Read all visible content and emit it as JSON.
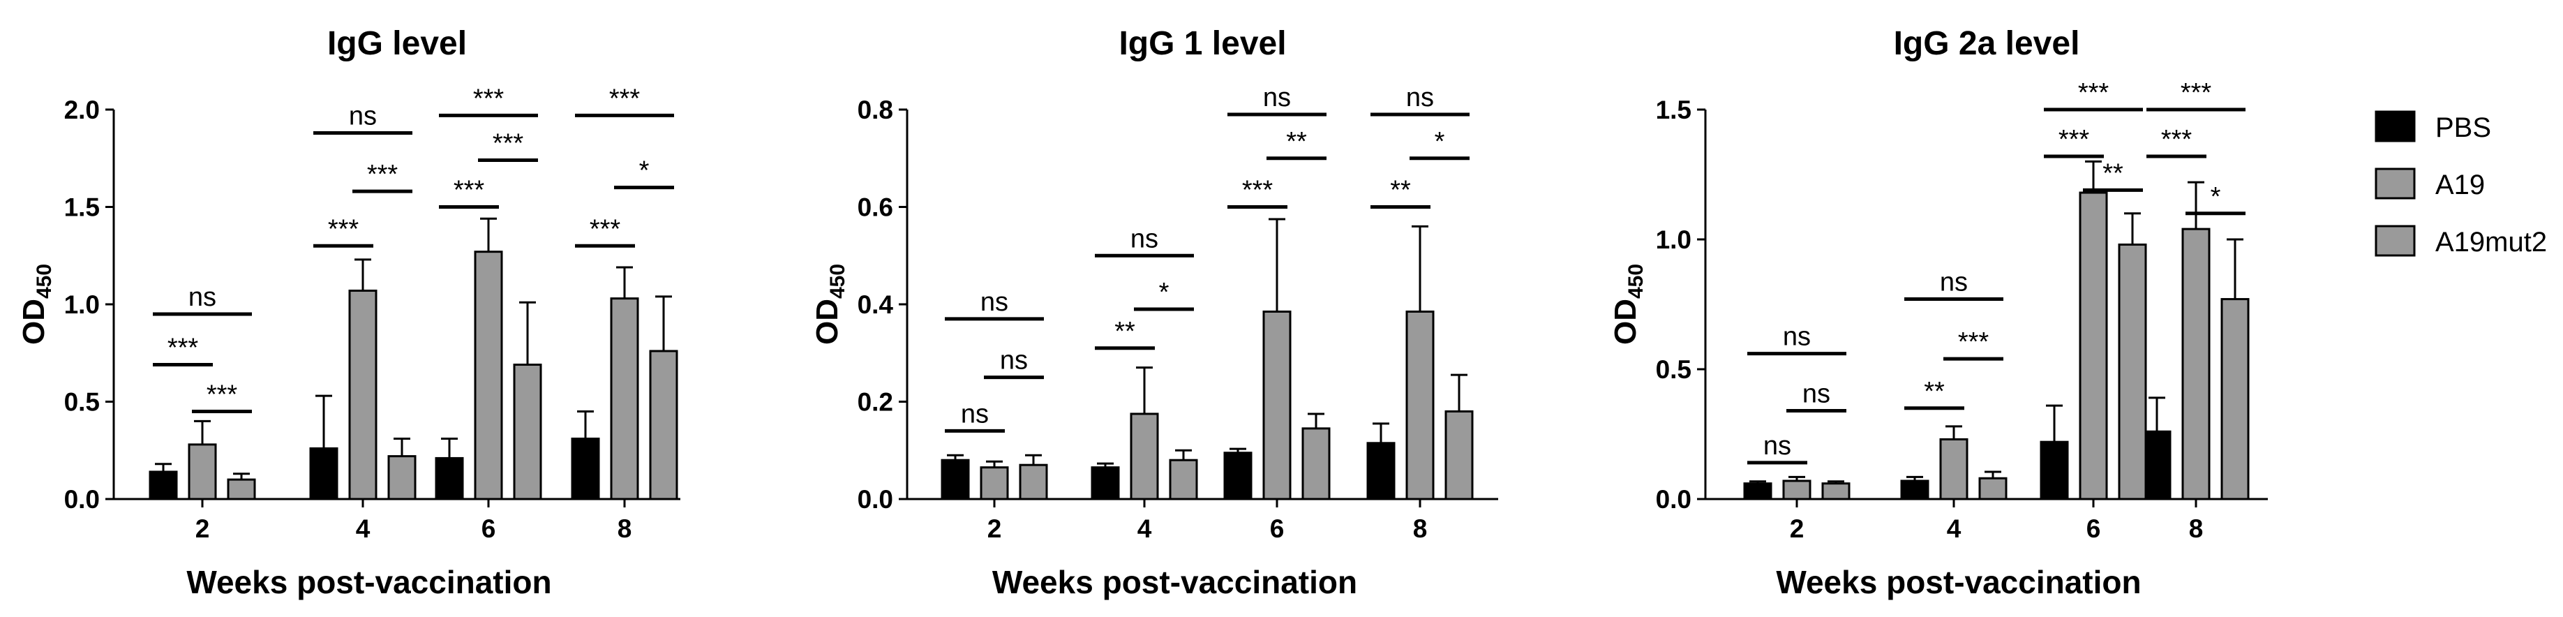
{
  "chart_data": [
    {
      "type": "bar",
      "title": "IgG level",
      "xlabel": "Weeks post-vaccination",
      "ylabel": "OD",
      "ylabel_sub": "450",
      "categories": [
        "2",
        "4",
        "6",
        "8"
      ],
      "ylim": [
        0,
        2.0
      ],
      "yticks": [
        "0.0",
        "0.5",
        "1.0",
        "1.5",
        "2.0"
      ],
      "series": [
        {
          "name": "PBS",
          "values": [
            0.14,
            0.26,
            0.21,
            0.31
          ],
          "errors": [
            0.04,
            0.27,
            0.1,
            0.14
          ]
        },
        {
          "name": "A19",
          "values": [
            0.28,
            1.07,
            1.27,
            1.03
          ],
          "errors": [
            0.12,
            0.16,
            0.17,
            0.16
          ]
        },
        {
          "name": "A19mut2",
          "values": [
            0.1,
            0.22,
            0.69,
            0.76
          ],
          "errors": [
            0.03,
            0.09,
            0.32,
            0.28
          ]
        }
      ],
      "significance": [
        {
          "category": 0,
          "from": 0,
          "to": 1,
          "label": "***",
          "y": 0.69
        },
        {
          "category": 0,
          "from": 1,
          "to": 2,
          "label": "***",
          "y": 0.45
        },
        {
          "category": 0,
          "from": 0,
          "to": 2,
          "label": "ns",
          "y": 0.95
        },
        {
          "category": 1,
          "from": 0,
          "to": 1,
          "label": "***",
          "y": 1.3
        },
        {
          "category": 1,
          "from": 1,
          "to": 2,
          "label": "***",
          "y": 1.58
        },
        {
          "category": 1,
          "from": 0,
          "to": 2,
          "label": "ns",
          "y": 1.88
        },
        {
          "category": 2,
          "from": 0,
          "to": 1,
          "label": "***",
          "y": 1.5
        },
        {
          "category": 2,
          "from": 1,
          "to": 2,
          "label": "***",
          "y": 1.74
        },
        {
          "category": 2,
          "from": 0,
          "to": 2,
          "label": "***",
          "y": 1.97
        },
        {
          "category": 3,
          "from": 0,
          "to": 1,
          "label": "***",
          "y": 1.3
        },
        {
          "category": 3,
          "from": 1,
          "to": 2,
          "label": "*",
          "y": 1.6
        },
        {
          "category": 3,
          "from": 0,
          "to": 2,
          "label": "***",
          "y": 1.97
        }
      ]
    },
    {
      "type": "bar",
      "title": "IgG 1  level",
      "xlabel": "Weeks post-vaccination",
      "ylabel": "OD",
      "ylabel_sub": "450",
      "categories": [
        "2",
        "4",
        "6",
        "8"
      ],
      "ylim": [
        0,
        0.8
      ],
      "yticks": [
        "0.0",
        "0.2",
        "0.4",
        "0.6",
        "0.8"
      ],
      "series": [
        {
          "name": "PBS",
          "values": [
            0.08,
            0.065,
            0.095,
            0.115
          ],
          "errors": [
            0.01,
            0.008,
            0.008,
            0.04
          ]
        },
        {
          "name": "A19",
          "values": [
            0.065,
            0.175,
            0.385,
            0.385
          ],
          "errors": [
            0.012,
            0.095,
            0.19,
            0.175
          ]
        },
        {
          "name": "A19mut2",
          "values": [
            0.07,
            0.08,
            0.145,
            0.18
          ],
          "errors": [
            0.02,
            0.02,
            0.03,
            0.075
          ]
        }
      ],
      "significance": [
        {
          "category": 0,
          "from": 0,
          "to": 1,
          "label": "ns",
          "y": 0.14
        },
        {
          "category": 0,
          "from": 1,
          "to": 2,
          "label": "ns",
          "y": 0.25
        },
        {
          "category": 0,
          "from": 0,
          "to": 2,
          "label": "ns",
          "y": 0.37
        },
        {
          "category": 1,
          "from": 0,
          "to": 1,
          "label": "**",
          "y": 0.31
        },
        {
          "category": 1,
          "from": 1,
          "to": 2,
          "label": "*",
          "y": 0.39
        },
        {
          "category": 1,
          "from": 0,
          "to": 2,
          "label": "ns",
          "y": 0.5
        },
        {
          "category": 2,
          "from": 0,
          "to": 1,
          "label": "***",
          "y": 0.6
        },
        {
          "category": 2,
          "from": 1,
          "to": 2,
          "label": "**",
          "y": 0.7
        },
        {
          "category": 2,
          "from": 0,
          "to": 2,
          "label": "ns",
          "y": 0.79
        },
        {
          "category": 3,
          "from": 0,
          "to": 1,
          "label": "**",
          "y": 0.6
        },
        {
          "category": 3,
          "from": 1,
          "to": 2,
          "label": "*",
          "y": 0.7
        },
        {
          "category": 3,
          "from": 0,
          "to": 2,
          "label": "ns",
          "y": 0.79
        }
      ]
    },
    {
      "type": "bar",
      "title": "IgG 2a level",
      "xlabel": "Weeks post-vaccination",
      "ylabel": "OD",
      "ylabel_sub": "450",
      "categories": [
        "2",
        "4",
        "6",
        "8"
      ],
      "ylim": [
        0,
        1.5
      ],
      "yticks": [
        "0.0",
        "0.5",
        "1.0",
        "1.5"
      ],
      "series": [
        {
          "name": "PBS",
          "values": [
            0.06,
            0.07,
            0.22,
            0.26
          ],
          "errors": [
            0.008,
            0.015,
            0.14,
            0.13
          ]
        },
        {
          "name": "A19",
          "values": [
            0.07,
            0.23,
            1.18,
            1.04
          ],
          "errors": [
            0.015,
            0.05,
            0.12,
            0.18
          ]
        },
        {
          "name": "A19mut2",
          "values": [
            0.06,
            0.08,
            0.98,
            0.77
          ],
          "errors": [
            0.008,
            0.025,
            0.12,
            0.23
          ]
        }
      ],
      "significance": [
        {
          "category": 0,
          "from": 0,
          "to": 1,
          "label": "ns",
          "y": 0.14
        },
        {
          "category": 0,
          "from": 1,
          "to": 2,
          "label": "ns",
          "y": 0.34
        },
        {
          "category": 0,
          "from": 0,
          "to": 2,
          "label": "ns",
          "y": 0.56
        },
        {
          "category": 1,
          "from": 0,
          "to": 1,
          "label": "**",
          "y": 0.35
        },
        {
          "category": 1,
          "from": 1,
          "to": 2,
          "label": "***",
          "y": 0.54
        },
        {
          "category": 1,
          "from": 0,
          "to": 2,
          "label": "ns",
          "y": 0.77
        },
        {
          "category": 2,
          "from": 0,
          "to": 1,
          "label": "***",
          "y": 1.32
        },
        {
          "category": 2,
          "from": 1,
          "to": 2,
          "label": "**",
          "y": 1.19
        },
        {
          "category": 2,
          "from": 0,
          "to": 2,
          "label": "***",
          "y": 1.5
        },
        {
          "category": 3,
          "from": 0,
          "to": 1,
          "label": "***",
          "y": 1.32
        },
        {
          "category": 3,
          "from": 1,
          "to": 2,
          "label": "*",
          "y": 1.1
        },
        {
          "category": 3,
          "from": 0,
          "to": 2,
          "label": "***",
          "y": 1.5
        }
      ]
    }
  ],
  "legend": {
    "entries": [
      {
        "name": "PBS",
        "color": "#000000"
      },
      {
        "name": "A19",
        "color": "#9a9a9a"
      },
      {
        "name": "A19mut2",
        "color": "#9a9a9a"
      }
    ]
  },
  "colors": {
    "PBS": "#000000",
    "A19": "#9a9a9a",
    "A19mut2": "#9a9a9a",
    "edge": "#000000"
  }
}
